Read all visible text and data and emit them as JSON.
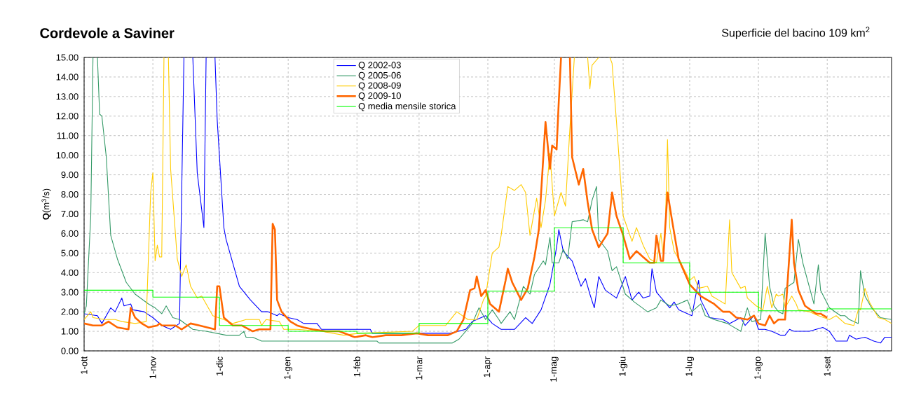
{
  "chart_data": {
    "type": "line",
    "title": "Cordevole a Saviner",
    "subtitle": "Superficie del bacino 109 km$^{2}$",
    "ylabel": "**Q**(m$^{3}$/s)",
    "xlim": [
      "2009-10-01",
      "2010-09-30"
    ],
    "ylim": [
      0,
      15
    ],
    "xticks": [
      {
        "value": "2009-10-01",
        "label": "1-ott"
      },
      {
        "value": "2009-11-01",
        "label": "1-nov"
      },
      {
        "value": "2009-12-01",
        "label": "1-dic"
      },
      {
        "value": "2010-01-01",
        "label": "1-gen"
      },
      {
        "value": "2010-02-01",
        "label": "1-feb"
      },
      {
        "value": "2010-03-01",
        "label": "1-mar"
      },
      {
        "value": "2010-04-01",
        "label": "1-apr"
      },
      {
        "value": "2010-05-01",
        "label": "1-mag"
      },
      {
        "value": "2010-06-01",
        "label": "1-giu"
      },
      {
        "value": "2010-07-01",
        "label": "1-lug"
      },
      {
        "value": "2010-08-01",
        "label": "1-ago"
      },
      {
        "value": "2010-09-01",
        "label": "1-set"
      }
    ],
    "yticks": [
      {
        "value": 0,
        "label": "0.00"
      },
      {
        "value": 1,
        "label": "1.00"
      },
      {
        "value": 2,
        "label": "2.00"
      },
      {
        "value": 3,
        "label": "3.00"
      },
      {
        "value": 4,
        "label": "4.00"
      },
      {
        "value": 5,
        "label": "5.00"
      },
      {
        "value": 6,
        "label": "6.00"
      },
      {
        "value": 7,
        "label": "7.00"
      },
      {
        "value": 8,
        "label": "8.00"
      },
      {
        "value": 9,
        "label": "9.00"
      },
      {
        "value": 10,
        "label": "10.00"
      },
      {
        "value": 11,
        "label": "11.00"
      },
      {
        "value": 12,
        "label": "12.00"
      },
      {
        "value": 13,
        "label": "13.00"
      },
      {
        "value": 14,
        "label": "14.00"
      },
      {
        "value": 15,
        "label": "15.00"
      }
    ],
    "grid": true,
    "legend": "top",
    "marker": "none",
    "line_style": "solid",
    "series": [
      {
        "name": "Q 2002-03",
        "color": "#0000ff",
        "x": [
          "2009-10-01",
          "2009-10-07",
          "2009-10-09",
          "2009-10-13",
          "2009-10-15",
          "2009-10-18",
          "2009-10-19",
          "2009-10-22",
          "2009-10-23",
          "2009-10-28",
          "2009-11-01",
          "2009-11-05",
          "2009-11-09",
          "2009-11-13",
          "2009-11-15",
          "2009-11-16",
          "2009-11-19",
          "2009-11-21",
          "2009-11-24",
          "2009-11-25",
          "2009-11-26",
          "2009-11-29",
          "2009-11-30",
          "2009-12-03",
          "2009-12-04",
          "2009-12-10",
          "2009-12-15",
          "2009-12-20",
          "2009-12-23",
          "2009-12-27",
          "2009-12-28",
          "2010-01-01",
          "2010-01-05",
          "2010-01-08",
          "2010-01-14",
          "2010-01-16",
          "2010-02-05",
          "2010-02-07",
          "2010-02-08",
          "2010-03-15",
          "2010-03-22",
          "2010-03-25",
          "2010-03-31",
          "2010-04-03",
          "2010-04-07",
          "2010-04-13",
          "2010-04-18",
          "2010-04-21",
          "2010-04-25",
          "2010-04-29",
          "2010-05-02",
          "2010-05-03",
          "2010-05-05",
          "2010-05-09",
          "2010-05-13",
          "2010-05-15",
          "2010-05-17",
          "2010-05-19",
          "2010-05-21",
          "2010-05-24",
          "2010-05-29",
          "2010-06-02",
          "2010-06-05",
          "2010-06-08",
          "2010-06-10",
          "2010-06-13",
          "2010-06-14",
          "2010-06-16",
          "2010-06-22",
          "2010-06-24",
          "2010-06-26",
          "2010-07-02",
          "2010-07-05",
          "2010-07-06",
          "2010-07-10",
          "2010-07-16",
          "2010-07-19",
          "2010-07-24",
          "2010-07-26",
          "2010-07-30",
          "2010-08-01",
          "2010-08-04",
          "2010-08-07",
          "2010-08-11",
          "2010-08-13",
          "2010-08-15",
          "2010-08-17",
          "2010-08-24",
          "2010-08-30",
          "2010-09-02",
          "2010-09-05",
          "2010-09-10",
          "2010-09-11",
          "2010-09-14",
          "2010-09-18",
          "2010-09-22",
          "2010-09-25",
          "2010-09-27",
          "2010-09-30"
        ],
        "values": [
          1.9,
          1.8,
          1.4,
          2.2,
          2.0,
          2.7,
          2.3,
          2.4,
          2.1,
          2.0,
          1.7,
          1.3,
          1.1,
          1.4,
          15,
          null,
          15,
          9.1,
          6.3,
          15,
          null,
          15,
          11.8,
          6.3,
          5.7,
          3.3,
          2.6,
          2.0,
          2.0,
          1.8,
          1.9,
          1.7,
          1.6,
          1.4,
          1.4,
          1.1,
          1.1,
          1.1,
          0.9,
          0.9,
          1.1,
          1.5,
          1.8,
          1.4,
          1.1,
          1.1,
          1.7,
          1.4,
          2.1,
          3.4,
          5.3,
          6.2,
          5.1,
          4.6,
          3.3,
          3.7,
          2.9,
          2.2,
          3.8,
          3.1,
          2.7,
          3.8,
          2.6,
          3.0,
          2.7,
          2.8,
          4.2,
          3.0,
          2.2,
          2.5,
          2.1,
          1.8,
          3.6,
          2.6,
          1.7,
          1.6,
          1.4,
          1.7,
          1.3,
          1.8,
          1.1,
          1.1,
          1.0,
          0.8,
          0.8,
          1.1,
          1.0,
          1.0,
          1.2,
          1.0,
          0.5,
          0.5,
          0.8,
          0.6,
          0.7,
          0.5,
          0.4,
          0.7,
          0.7
        ]
      },
      {
        "name": "Q 2005-06",
        "color": "#339966",
        "x": [
          "2009-10-01",
          "2009-10-02",
          "2009-10-04",
          "2009-10-05",
          "2009-10-06",
          "2009-10-07",
          "2009-10-08",
          "2009-10-09",
          "2009-10-11",
          "2009-10-13",
          "2009-10-16",
          "2009-10-20",
          "2009-10-24",
          "2009-10-30",
          "2009-11-02",
          "2009-11-05",
          "2009-11-07",
          "2009-11-10",
          "2009-11-13",
          "2009-11-19",
          "2009-11-25",
          "2009-12-04",
          "2009-12-10",
          "2009-12-12",
          "2009-12-13",
          "2009-12-16",
          "2009-12-20",
          "2010-02-10",
          "2010-02-11",
          "2010-03-16",
          "2010-03-19",
          "2010-03-22",
          "2010-03-25",
          "2010-03-28",
          "2010-03-31",
          "2010-04-03",
          "2010-04-06",
          "2010-04-07",
          "2010-04-11",
          "2010-04-13",
          "2010-04-17",
          "2010-04-20",
          "2010-04-22",
          "2010-04-26",
          "2010-04-27",
          "2010-04-29",
          "2010-04-30",
          "2010-05-03",
          "2010-05-05",
          "2010-05-07",
          "2010-05-09",
          "2010-05-14",
          "2010-05-16",
          "2010-05-18",
          "2010-05-20",
          "2010-05-21",
          "2010-05-25",
          "2010-05-27",
          "2010-05-29",
          "2010-06-02",
          "2010-06-06",
          "2010-06-12",
          "2010-06-16",
          "2010-06-18",
          "2010-06-22",
          "2010-06-26",
          "2010-06-30",
          "2010-07-02",
          "2010-07-06",
          "2010-07-08",
          "2010-07-12",
          "2010-07-18",
          "2010-07-24",
          "2010-07-27",
          "2010-07-29",
          "2010-08-02",
          "2010-08-04",
          "2010-08-06",
          "2010-08-08",
          "2010-08-10",
          "2010-08-12",
          "2010-08-13",
          "2010-08-17",
          "2010-08-19",
          "2010-08-21",
          "2010-08-26",
          "2010-08-28",
          "2010-08-29",
          "2010-09-02",
          "2010-09-07",
          "2010-09-09",
          "2010-09-11",
          "2010-09-15",
          "2010-09-16",
          "2010-09-18",
          "2010-09-21",
          "2010-09-25",
          "2010-09-30"
        ],
        "values": [
          1.9,
          2.3,
          6.9,
          15,
          null,
          15,
          12.1,
          12.0,
          9.9,
          5.9,
          4.7,
          3.5,
          2.9,
          2.4,
          2.2,
          1.9,
          2.3,
          1.7,
          1.6,
          1.1,
          1.0,
          0.8,
          0.8,
          1.0,
          0.7,
          0.7,
          0.5,
          0.5,
          0.4,
          0.4,
          0.6,
          1.0,
          1.4,
          2.2,
          1.6,
          2.1,
          1.6,
          1.4,
          2.0,
          1.6,
          3.3,
          2.9,
          3.9,
          4.6,
          4.4,
          5.8,
          4.5,
          4.5,
          5.2,
          4.7,
          6.6,
          6.7,
          6.6,
          7.7,
          8.4,
          5.7,
          5.1,
          4.1,
          4.3,
          2.9,
          2.5,
          2.0,
          2.2,
          2.6,
          2.3,
          2.4,
          2.6,
          2.0,
          2.4,
          1.8,
          1.6,
          1.4,
          1.0,
          2.2,
          1.5,
          1.6,
          6.0,
          3.3,
          2.3,
          2.0,
          1.9,
          3.2,
          3.5,
          5.7,
          4.5,
          2.4,
          4.4,
          3.1,
          2.2,
          1.8,
          1.8,
          1.6,
          1.4,
          4.1,
          2.8,
          2.2,
          1.7,
          1.6
        ]
      },
      {
        "name": "Q 2008-09",
        "color": "#ffcc00",
        "x": [
          "2009-10-01",
          "2009-10-04",
          "2009-10-05",
          "2009-10-10",
          "2009-10-15",
          "2009-10-18",
          "2009-10-24",
          "2009-10-29",
          "2009-10-31",
          "2009-11-01",
          "2009-11-02",
          "2009-11-03",
          "2009-11-04",
          "2009-11-05",
          "2009-11-06",
          "2009-11-07",
          "2009-11-08",
          "2009-11-09",
          "2009-11-12",
          "2009-11-14",
          "2009-11-16",
          "2009-11-18",
          "2009-11-21",
          "2009-11-23",
          "2009-11-26",
          "2009-11-28",
          "2009-12-03",
          "2009-12-07",
          "2009-12-10",
          "2009-12-13",
          "2009-12-19",
          "2009-12-20",
          "2009-12-22",
          "2009-12-28",
          "2009-12-30",
          "2010-01-05",
          "2010-01-16",
          "2010-01-26",
          "2010-02-02",
          "2010-02-26",
          "2010-03-01",
          "2010-03-13",
          "2010-03-18",
          "2010-03-23",
          "2010-03-27",
          "2010-03-30",
          "2010-03-31",
          "2010-04-03",
          "2010-04-06",
          "2010-04-07",
          "2010-04-10",
          "2010-04-13",
          "2010-04-16",
          "2010-04-18",
          "2010-04-20",
          "2010-04-23",
          "2010-04-25",
          "2010-04-27",
          "2010-04-29",
          "2010-05-01",
          "2010-05-04",
          "2010-05-06",
          "2010-05-08",
          "2010-05-10",
          "2010-05-13",
          "2010-05-16",
          "2010-05-17",
          "2010-05-18",
          "2010-05-21",
          "2010-05-23",
          "2010-05-26",
          "2010-05-27",
          "2010-05-29",
          "2010-06-01",
          "2010-06-05",
          "2010-06-07",
          "2010-06-10",
          "2010-06-13",
          "2010-06-16",
          "2010-06-18",
          "2010-06-19",
          "2010-06-20",
          "2010-06-21",
          "2010-06-22",
          "2010-06-24",
          "2010-06-27",
          "2010-07-01",
          "2010-07-03",
          "2010-07-05",
          "2010-07-09",
          "2010-07-11",
          "2010-07-14",
          "2010-07-17",
          "2010-07-19",
          "2010-07-20",
          "2010-07-24",
          "2010-07-26",
          "2010-07-27",
          "2010-07-31",
          "2010-08-03",
          "2010-08-05",
          "2010-08-07",
          "2010-08-09",
          "2010-08-10",
          "2010-08-12",
          "2010-08-13",
          "2010-08-16",
          "2010-08-18",
          "2010-08-19",
          "2010-08-24",
          "2010-08-28",
          "2010-09-02",
          "2010-09-05",
          "2010-09-09",
          "2010-09-13",
          "2010-09-15",
          "2010-09-16",
          "2010-09-18",
          "2010-09-20",
          "2010-09-24",
          "2010-09-27",
          "2010-09-30"
        ],
        "values": [
          1.6,
          2.0,
          1.7,
          1.6,
          1.6,
          1.5,
          1.4,
          1.5,
          8.1,
          9.1,
          4.6,
          5.4,
          4.8,
          4.8,
          15,
          null,
          15,
          9.3,
          4.7,
          3.8,
          4.4,
          3.3,
          2.7,
          2.8,
          2.2,
          1.8,
          1.6,
          1.4,
          1.5,
          1.6,
          1.6,
          1.3,
          1.6,
          1.5,
          1.1,
          1.1,
          1.0,
          0.8,
          0.9,
          1.0,
          1.3,
          1.3,
          2.0,
          1.6,
          1.6,
          2.6,
          2.8,
          5.0,
          5.3,
          5.9,
          8.4,
          8.2,
          8.5,
          8.1,
          5.9,
          7.8,
          6.3,
          7.7,
          10.1,
          6.9,
          8.1,
          7.4,
          11.4,
          15,
          null,
          15,
          13.4,
          14.6,
          15,
          null,
          15,
          14.7,
          11.7,
          6.9,
          5.6,
          6.3,
          5.4,
          4.7,
          4.5,
          6.0,
          5.0,
          6.3,
          10.8,
          6.3,
          5.1,
          4.5,
          3.6,
          3.8,
          3.2,
          3.3,
          2.8,
          2.6,
          2.4,
          6.7,
          4.0,
          3.2,
          3.3,
          2.7,
          2.3,
          2.1,
          3.3,
          2.2,
          2.9,
          2.8,
          2.9,
          2.2,
          2.8,
          2.4,
          2.1,
          2.0,
          1.8,
          1.6,
          1.8,
          1.4,
          1.3,
          2.1,
          2.1,
          3.2,
          2.5,
          1.7,
          1.6,
          1.4
        ]
      },
      {
        "name": "Q 2009-10",
        "color": "#ff6600",
        "x": [
          "2009-10-01",
          "2009-10-05",
          "2009-10-09",
          "2009-10-12",
          "2009-10-16",
          "2009-10-21",
          "2009-10-22",
          "2009-10-24",
          "2009-10-27",
          "2009-10-30",
          "2009-11-03",
          "2009-11-04",
          "2009-11-05",
          "2009-11-11",
          "2009-11-14",
          "2009-11-18",
          "2009-11-22",
          "2009-11-29",
          "2009-11-30",
          "2009-12-01",
          "2009-12-03",
          "2009-12-04",
          "2009-12-07",
          "2009-12-11",
          "2009-12-16",
          "2009-12-19",
          "2009-12-24",
          "2009-12-25",
          "2009-12-26",
          "2009-12-27",
          "2009-12-29",
          "2010-01-02",
          "2010-01-05",
          "2010-01-08",
          "2010-01-12",
          "2010-01-18",
          "2010-01-24",
          "2010-01-31",
          "2010-02-05",
          "2010-02-08",
          "2010-02-14",
          "2010-02-21",
          "2010-02-28",
          "2010-03-05",
          "2010-03-14",
          "2010-03-18",
          "2010-03-21",
          "2010-03-24",
          "2010-03-26",
          "2010-03-27",
          "2010-03-29",
          "2010-03-31",
          "2010-04-02",
          "2010-04-05",
          "2010-04-06",
          "2010-04-09",
          "2010-04-10",
          "2010-04-12",
          "2010-04-16",
          "2010-04-19",
          "2010-04-22",
          "2010-04-24",
          "2010-04-26",
          "2010-04-27",
          "2010-04-29",
          "2010-04-30",
          "2010-05-02",
          "2010-05-03",
          "2010-05-04",
          "2010-05-06",
          "2010-05-08",
          "2010-05-09",
          "2010-05-12",
          "2010-05-14",
          "2010-05-16",
          "2010-05-18",
          "2010-05-21",
          "2010-05-25",
          "2010-05-27",
          "2010-05-29",
          "2010-06-01",
          "2010-06-04",
          "2010-06-07",
          "2010-06-10",
          "2010-06-13",
          "2010-06-15",
          "2010-06-16",
          "2010-06-18",
          "2010-06-19",
          "2010-06-21",
          "2010-06-23",
          "2010-06-26",
          "2010-07-01",
          "2010-07-06",
          "2010-07-12",
          "2010-07-16",
          "2010-07-19",
          "2010-07-22",
          "2010-07-27",
          "2010-07-30",
          "2010-08-01",
          "2010-08-04",
          "2010-08-06",
          "2010-08-08",
          "2010-08-10",
          "2010-08-13",
          "2010-08-14",
          "2010-08-16",
          "2010-08-17",
          "2010-08-19",
          "2010-08-22",
          "2010-08-27",
          "2010-08-29",
          "2010-09-01"
        ],
        "values": [
          1.4,
          1.3,
          1.3,
          1.5,
          1.2,
          1.1,
          2.2,
          1.7,
          1.4,
          1.2,
          1.3,
          1.4,
          1.3,
          1.3,
          1.1,
          1.4,
          1.3,
          1.1,
          3.3,
          3.3,
          1.7,
          1.6,
          1.3,
          1.3,
          1.0,
          1.1,
          1.1,
          6.5,
          6.2,
          2.6,
          2.0,
          1.5,
          1.3,
          1.2,
          1.1,
          1.0,
          1.0,
          0.7,
          0.8,
          0.7,
          0.8,
          0.8,
          0.9,
          0.8,
          0.8,
          1.0,
          1.6,
          3.1,
          3.2,
          3.8,
          2.8,
          3.1,
          2.4,
          2.1,
          2.0,
          3.6,
          4.2,
          3.5,
          2.6,
          3.2,
          4.8,
          6.2,
          9.9,
          11.7,
          9.3,
          10.5,
          10.3,
          12.8,
          15,
          null,
          15,
          9.9,
          8.5,
          9.3,
          7.6,
          6.2,
          5.3,
          6.0,
          8.1,
          6.9,
          5.9,
          4.7,
          5.1,
          4.8,
          4.5,
          4.5,
          5.9,
          4.6,
          4.6,
          8.1,
          6.7,
          4.7,
          3.4,
          2.8,
          2.4,
          2.0,
          2.0,
          1.7,
          1.6,
          1.8,
          1.4,
          1.3,
          1.8,
          1.4,
          1.6,
          1.6,
          3.3,
          6.7,
          4.5,
          3.1,
          2.3,
          1.9,
          1.9,
          1.7
        ]
      },
      {
        "name": "Q media mensile storica",
        "color": "#00ff00",
        "type": "step",
        "x": [
          "2009-10-01",
          "2009-11-01",
          "2009-12-01",
          "2010-01-01",
          "2010-02-01",
          "2010-03-01",
          "2010-04-01",
          "2010-05-01",
          "2010-06-01",
          "2010-07-01",
          "2010-08-01",
          "2010-09-01",
          "2010-09-30"
        ],
        "values": [
          3.1,
          2.75,
          1.3,
          1.0,
          0.9,
          1.4,
          3.05,
          6.3,
          4.5,
          3.0,
          2.05,
          2.15,
          2.15
        ]
      }
    ]
  }
}
